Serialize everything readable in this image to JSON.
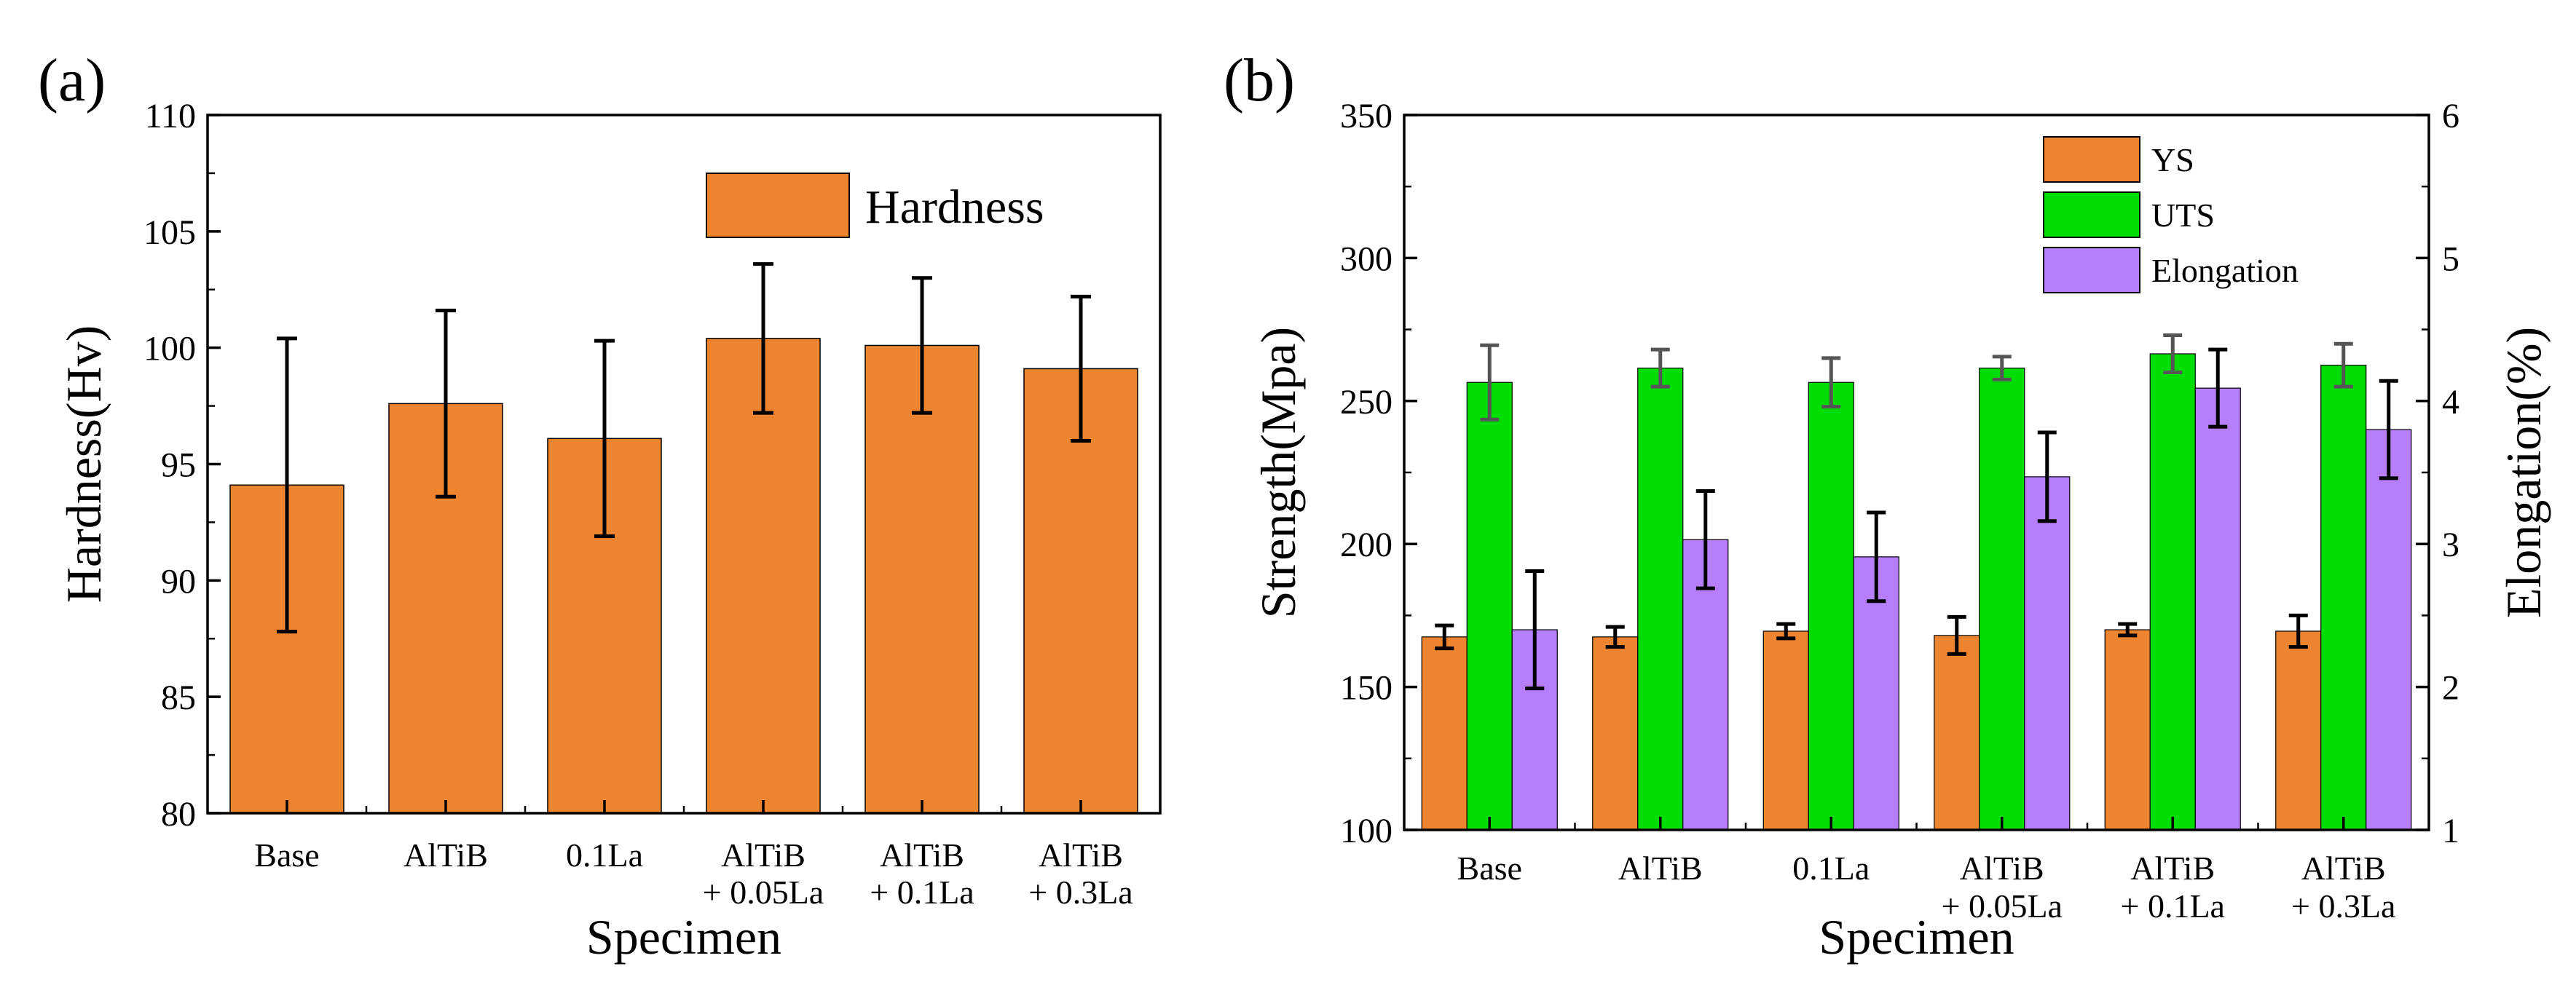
{
  "chart_data": [
    {
      "type": "bar",
      "panel_label": "(a)",
      "categories": [
        [
          "Base"
        ],
        [
          "AlTiB"
        ],
        [
          "0.1La"
        ],
        [
          "AlTiB",
          "+ 0.05La"
        ],
        [
          "AlTiB",
          "+ 0.1La"
        ],
        [
          "AlTiB",
          "+ 0.3La"
        ]
      ],
      "series": [
        {
          "name": "Hardness",
          "color": "#ED842F",
          "values": [
            94.1,
            97.6,
            96.1,
            100.4,
            100.1,
            99.1
          ],
          "errors": [
            6.3,
            4.0,
            4.2,
            3.2,
            2.9,
            3.1
          ]
        }
      ],
      "xlabel": "Specimen",
      "ylabel": "Hardness(Hv)",
      "ylim": [
        80,
        110
      ],
      "yticks": [
        80,
        85,
        90,
        95,
        100,
        105,
        110
      ],
      "legend": [
        "Hardness"
      ],
      "legend_position": "top-right"
    },
    {
      "type": "bar",
      "panel_label": "(b)",
      "categories": [
        [
          "Base"
        ],
        [
          "AlTiB"
        ],
        [
          "0.1La"
        ],
        [
          "AlTiB",
          "+ 0.05La"
        ],
        [
          "AlTiB",
          "+ 0.1La"
        ],
        [
          "AlTiB",
          "+ 0.3La"
        ]
      ],
      "series": [
        {
          "name": "YS",
          "axis": "left",
          "color": "#ED842F",
          "values": [
            167.5,
            167.5,
            169.5,
            168,
            170,
            169.5
          ],
          "errors": [
            4,
            3.5,
            2.5,
            6.5,
            2,
            5.5
          ]
        },
        {
          "name": "UTS",
          "axis": "left",
          "color": "#00DD00",
          "values": [
            256.5,
            261.5,
            256.5,
            261.5,
            266.5,
            262.5
          ],
          "errors": [
            13,
            6.5,
            8.5,
            4,
            6.5,
            7.5
          ]
        },
        {
          "name": "Elongation",
          "axis": "right",
          "color": "#B77EFA",
          "values": [
            2.4,
            3.03,
            2.91,
            3.47,
            4.09,
            3.8
          ],
          "errors": [
            0.41,
            0.34,
            0.31,
            0.31,
            0.27,
            0.34
          ]
        }
      ],
      "xlabel": "Specimen",
      "ylabel": "Strength(Mpa)",
      "ylabel_right": "Elongation(%)",
      "ylim": [
        100,
        350
      ],
      "yticks": [
        100,
        150,
        200,
        250,
        300,
        350
      ],
      "ylim_right": [
        1,
        6
      ],
      "yticks_right": [
        1,
        2,
        3,
        4,
        5,
        6
      ],
      "legend": [
        "YS",
        "UTS",
        "Elongation"
      ],
      "legend_position": "top-right"
    }
  ]
}
